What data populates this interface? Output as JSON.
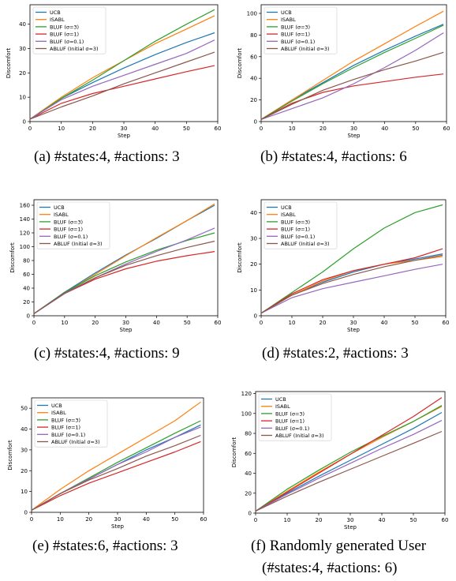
{
  "chart_data": [
    {
      "type": "line",
      "caption": "(a) #states:4, #actions: 3",
      "xlabel": "Step",
      "ylabel": "Discomfort",
      "xlim": [
        0,
        60
      ],
      "ylim": [
        0,
        48
      ],
      "xticks": [
        0,
        10,
        20,
        30,
        40,
        50,
        60
      ],
      "yticks": [
        0,
        10,
        20,
        30,
        40
      ],
      "legend": "top-left",
      "grid": false,
      "series": [
        {
          "name": "UCB",
          "color": "#1f77b4",
          "x": [
            0,
            10,
            20,
            30,
            40,
            50,
            59
          ],
          "y": [
            1,
            9.5,
            16,
            22,
            27.5,
            32.5,
            36.5
          ]
        },
        {
          "name": "ISABL",
          "color": "#ff7f0e",
          "x": [
            0,
            10,
            20,
            30,
            40,
            50,
            59
          ],
          "y": [
            1,
            10,
            18,
            25,
            32,
            38,
            43.5
          ]
        },
        {
          "name": "BLUF (σ=3)",
          "color": "#2ca02c",
          "x": [
            0,
            10,
            20,
            30,
            40,
            50,
            59
          ],
          "y": [
            1,
            9.5,
            17,
            25,
            33,
            40,
            46
          ]
        },
        {
          "name": "BLUF (σ=1)",
          "color": "#d62728",
          "x": [
            0,
            10,
            20,
            30,
            40,
            50,
            59
          ],
          "y": [
            1,
            7.5,
            11.5,
            14.5,
            17.5,
            20.5,
            23
          ]
        },
        {
          "name": "BLUF (σ=0.1)",
          "color": "#9467bd",
          "x": [
            0,
            10,
            20,
            30,
            40,
            50,
            59
          ],
          "y": [
            1,
            9,
            14.5,
            19,
            23.5,
            28,
            33.5
          ]
        },
        {
          "name": "ABLUF (Initial σ=3)",
          "color": "#8c564b",
          "x": [
            0,
            10,
            20,
            30,
            40,
            50,
            59
          ],
          "y": [
            1,
            6,
            10.5,
            15.5,
            20,
            24.5,
            28.5
          ]
        }
      ]
    },
    {
      "type": "line",
      "caption": "(b) #states:4, #actions: 6",
      "xlabel": "Step",
      "ylabel": "Discomfort",
      "xlim": [
        0,
        60
      ],
      "ylim": [
        0,
        108
      ],
      "xticks": [
        0,
        10,
        20,
        30,
        40,
        50,
        60
      ],
      "yticks": [
        0,
        20,
        40,
        60,
        80,
        100
      ],
      "legend": "top-left",
      "grid": false,
      "series": [
        {
          "name": "UCB",
          "color": "#1f77b4",
          "x": [
            0,
            10,
            20,
            30,
            40,
            50,
            59
          ],
          "y": [
            2,
            20,
            36,
            52,
            66,
            79,
            90
          ]
        },
        {
          "name": "ISABL",
          "color": "#ff7f0e",
          "x": [
            0,
            10,
            20,
            30,
            40,
            50,
            59
          ],
          "y": [
            2,
            20,
            38,
            56,
            72,
            88,
            102
          ]
        },
        {
          "name": "BLUF (σ=3)",
          "color": "#2ca02c",
          "x": [
            0,
            10,
            20,
            30,
            40,
            50,
            59
          ],
          "y": [
            2,
            19,
            35,
            50,
            64,
            77,
            89
          ]
        },
        {
          "name": "BLUF (σ=1)",
          "color": "#d62728",
          "x": [
            0,
            10,
            20,
            30,
            40,
            50,
            59
          ],
          "y": [
            2,
            17,
            27,
            33,
            37,
            41,
            44
          ]
        },
        {
          "name": "BLUF (σ=0.1)",
          "color": "#9467bd",
          "x": [
            0,
            10,
            20,
            30,
            40,
            50,
            59
          ],
          "y": [
            2,
            12,
            22,
            35,
            50,
            66,
            82
          ]
        },
        {
          "name": "ABLUF (Initial σ=3)",
          "color": "#8c564b",
          "x": [
            0,
            10,
            20,
            30,
            40,
            50,
            59
          ],
          "y": [
            2,
            16,
            29,
            39,
            48,
            56,
            64
          ]
        }
      ]
    },
    {
      "type": "line",
      "caption": "(c) #states:4, #actions: 9",
      "xlabel": "Step",
      "ylabel": "Discomfort",
      "xlim": [
        0,
        60
      ],
      "ylim": [
        0,
        168
      ],
      "xticks": [
        0,
        10,
        20,
        30,
        40,
        50,
        60
      ],
      "yticks": [
        0,
        20,
        40,
        60,
        80,
        100,
        120,
        140,
        160
      ],
      "legend": "top-left",
      "grid": false,
      "series": [
        {
          "name": "UCB",
          "color": "#1f77b4",
          "x": [
            0,
            10,
            20,
            30,
            40,
            50,
            59
          ],
          "y": [
            3,
            34,
            62,
            88,
            112,
            138,
            160
          ]
        },
        {
          "name": "ISABL",
          "color": "#ff7f0e",
          "x": [
            0,
            10,
            20,
            30,
            40,
            50,
            59
          ],
          "y": [
            3,
            33,
            60,
            87,
            113,
            138,
            162
          ]
        },
        {
          "name": "BLUF (σ=3)",
          "color": "#2ca02c",
          "x": [
            0,
            10,
            20,
            30,
            40,
            50,
            59
          ],
          "y": [
            3,
            34,
            58,
            78,
            95,
            109,
            120
          ]
        },
        {
          "name": "BLUF (σ=1)",
          "color": "#d62728",
          "x": [
            0,
            10,
            20,
            30,
            40,
            50,
            59
          ],
          "y": [
            3,
            32,
            53,
            68,
            79,
            87,
            93
          ]
        },
        {
          "name": "BLUF (σ=0.1)",
          "color": "#9467bd",
          "x": [
            0,
            10,
            20,
            30,
            40,
            50,
            59
          ],
          "y": [
            3,
            32,
            55,
            75,
            93,
            110,
            127
          ]
        },
        {
          "name": "ABLUF (Initial σ=3)",
          "color": "#8c564b",
          "x": [
            0,
            10,
            20,
            30,
            40,
            50,
            59
          ],
          "y": [
            3,
            33,
            55,
            73,
            87,
            99,
            108
          ]
        }
      ]
    },
    {
      "type": "line",
      "caption": "(d) #states:2, #actions: 3",
      "xlabel": "Step",
      "ylabel": "Discomfort",
      "xlim": [
        0,
        60
      ],
      "ylim": [
        0,
        45
      ],
      "xticks": [
        0,
        10,
        20,
        30,
        40,
        50,
        60
      ],
      "yticks": [
        0,
        10,
        20,
        30,
        40
      ],
      "legend": "top-left",
      "grid": false,
      "series": [
        {
          "name": "UCB",
          "color": "#1f77b4",
          "x": [
            0,
            10,
            20,
            30,
            40,
            50,
            59
          ],
          "y": [
            1,
            8,
            13,
            17,
            20,
            22,
            24
          ]
        },
        {
          "name": "ISABL",
          "color": "#ff7f0e",
          "x": [
            0,
            10,
            20,
            30,
            40,
            50,
            59
          ],
          "y": [
            1,
            8,
            13.5,
            17.5,
            20,
            21.5,
            23
          ]
        },
        {
          "name": "BLUF (σ=3)",
          "color": "#2ca02c",
          "x": [
            0,
            10,
            20,
            30,
            40,
            50,
            59
          ],
          "y": [
            1,
            9,
            17,
            26,
            34,
            40,
            43
          ]
        },
        {
          "name": "BLUF (σ=1)",
          "color": "#d62728",
          "x": [
            0,
            10,
            20,
            30,
            40,
            50,
            59
          ],
          "y": [
            1,
            8.5,
            14,
            17.5,
            20,
            22.5,
            26
          ]
        },
        {
          "name": "BLUF (σ=0.1)",
          "color": "#9467bd",
          "x": [
            0,
            10,
            20,
            30,
            40,
            50,
            59
          ],
          "y": [
            1,
            7,
            10.5,
            13,
            15.5,
            18,
            20
          ]
        },
        {
          "name": "ABLUF (Initial σ=3)",
          "color": "#8c564b",
          "x": [
            0,
            10,
            20,
            30,
            40,
            50,
            59
          ],
          "y": [
            1,
            8,
            12.5,
            16,
            19,
            21.5,
            23.5
          ]
        }
      ]
    },
    {
      "type": "line",
      "caption": "(e) #states:6, #actions: 3",
      "xlabel": "Step",
      "ylabel": "Discomfort",
      "xlim": [
        0,
        60
      ],
      "ylim": [
        0,
        55
      ],
      "xticks": [
        0,
        10,
        20,
        30,
        40,
        50,
        60
      ],
      "yticks": [
        0,
        10,
        20,
        30,
        40,
        50
      ],
      "legend": "top-left",
      "grid": false,
      "series": [
        {
          "name": "UCB",
          "color": "#1f77b4",
          "x": [
            0,
            10,
            20,
            30,
            40,
            50,
            59
          ],
          "y": [
            1,
            9,
            16,
            23,
            30,
            36,
            42
          ]
        },
        {
          "name": "ISABL",
          "color": "#ff7f0e",
          "x": [
            0,
            10,
            20,
            30,
            40,
            50,
            59
          ],
          "y": [
            1,
            11,
            20,
            28,
            36,
            44,
            53
          ]
        },
        {
          "name": "BLUF (σ=3)",
          "color": "#2ca02c",
          "x": [
            0,
            10,
            20,
            30,
            40,
            50,
            59
          ],
          "y": [
            1,
            9,
            16.5,
            24,
            31,
            38,
            44
          ]
        },
        {
          "name": "BLUF (σ=1)",
          "color": "#d62728",
          "x": [
            0,
            10,
            20,
            30,
            40,
            50,
            59
          ],
          "y": [
            1,
            8,
            14,
            19,
            24,
            29,
            34
          ]
        },
        {
          "name": "BLUF (σ=0.1)",
          "color": "#9467bd",
          "x": [
            0,
            10,
            20,
            30,
            40,
            50,
            59
          ],
          "y": [
            1,
            9,
            16,
            23,
            29,
            36,
            41
          ]
        },
        {
          "name": "ABLUF (Initial σ=3)",
          "color": "#8c564b",
          "x": [
            0,
            10,
            20,
            30,
            40,
            50,
            59
          ],
          "y": [
            1,
            9,
            15.5,
            21,
            27,
            32,
            37
          ]
        }
      ]
    },
    {
      "type": "line",
      "caption": "(f) Randomly generated User (#states:4, #actions: 6)",
      "xlabel": "Step",
      "ylabel": "Discomfort",
      "xlim": [
        0,
        60
      ],
      "ylim": [
        0,
        122
      ],
      "xticks": [
        0,
        10,
        20,
        30,
        40,
        50,
        60
      ],
      "yticks": [
        0,
        20,
        40,
        60,
        80,
        100,
        120
      ],
      "legend": "top-left",
      "grid": false,
      "series": [
        {
          "name": "UCB",
          "color": "#1f77b4",
          "x": [
            0,
            10,
            20,
            30,
            40,
            50,
            59
          ],
          "y": [
            2,
            20,
            37,
            53,
            69,
            85,
            101
          ]
        },
        {
          "name": "ISABL",
          "color": "#ff7f0e",
          "x": [
            0,
            10,
            20,
            30,
            40,
            50,
            59
          ],
          "y": [
            2,
            22,
            41,
            59,
            76,
            92,
            107
          ]
        },
        {
          "name": "BLUF (σ=3)",
          "color": "#2ca02c",
          "x": [
            0,
            10,
            20,
            30,
            40,
            50,
            59
          ],
          "y": [
            2,
            24,
            43,
            61,
            77,
            92,
            108
          ]
        },
        {
          "name": "BLUF (σ=1)",
          "color": "#d62728",
          "x": [
            0,
            10,
            20,
            30,
            40,
            50,
            59
          ],
          "y": [
            2,
            21,
            40,
            59,
            78,
            97,
            116
          ]
        },
        {
          "name": "BLUF (σ=0.1)",
          "color": "#9467bd",
          "x": [
            0,
            10,
            20,
            30,
            40,
            50,
            59
          ],
          "y": [
            2,
            19,
            35,
            50,
            65,
            79,
            93
          ]
        },
        {
          "name": "ABLUF (Initial σ=3)",
          "color": "#8c564b",
          "x": [
            0,
            10,
            20,
            30,
            40,
            50,
            59
          ],
          "y": [
            2,
            17,
            31,
            44,
            57,
            70,
            82
          ]
        }
      ]
    }
  ]
}
